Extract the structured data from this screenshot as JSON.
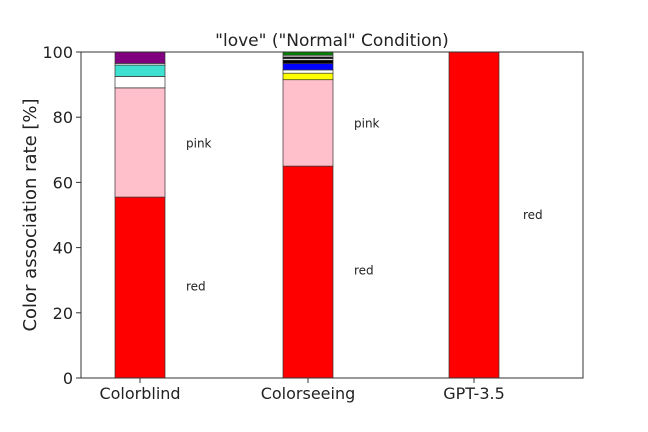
{
  "chart_data": {
    "type": "bar",
    "stacked": true,
    "title": "\"love\" (\"Normal\" Condition)",
    "xlabel": "",
    "ylabel": "Color association rate [%]",
    "ylim": [
      0,
      100
    ],
    "yticks": [
      0,
      20,
      40,
      60,
      80,
      100
    ],
    "grid": false,
    "categories": [
      "Colorblind",
      "Colorseeing",
      "GPT-3.5"
    ],
    "stacks": [
      [
        {
          "color": "#ff0000",
          "value": 55.5
        },
        {
          "color": "#ffc0cb",
          "value": 33.5
        },
        {
          "color": "#ffffff",
          "value": 3.5
        },
        {
          "color": "#40e0d0",
          "value": 3.5
        },
        {
          "color": "#ffffff",
          "value": 0.5
        },
        {
          "color": "#800080",
          "value": 3.5
        }
      ],
      [
        {
          "color": "#ff0000",
          "value": 65
        },
        {
          "color": "#ffc0cb",
          "value": 26.5
        },
        {
          "color": "#ffff00",
          "value": 2
        },
        {
          "color": "#ffffff",
          "value": 1
        },
        {
          "color": "#0000ff",
          "value": 2
        },
        {
          "color": "#000000",
          "value": 1
        },
        {
          "color": "#ffffff",
          "value": 0.5
        },
        {
          "color": "#000000",
          "value": 0.5
        },
        {
          "color": "#ffffff",
          "value": 0.5
        },
        {
          "color": "#008000",
          "value": 1
        }
      ],
      [
        {
          "color": "#ff0000",
          "value": 100
        }
      ]
    ],
    "annotations": [
      {
        "category": 0,
        "text": "red",
        "y": 28
      },
      {
        "category": 0,
        "text": "pink",
        "y": 72
      },
      {
        "category": 1,
        "text": "red",
        "y": 33
      },
      {
        "category": 1,
        "text": "pink",
        "y": 78
      },
      {
        "category": 2,
        "text": "red",
        "y": 50
      }
    ]
  }
}
